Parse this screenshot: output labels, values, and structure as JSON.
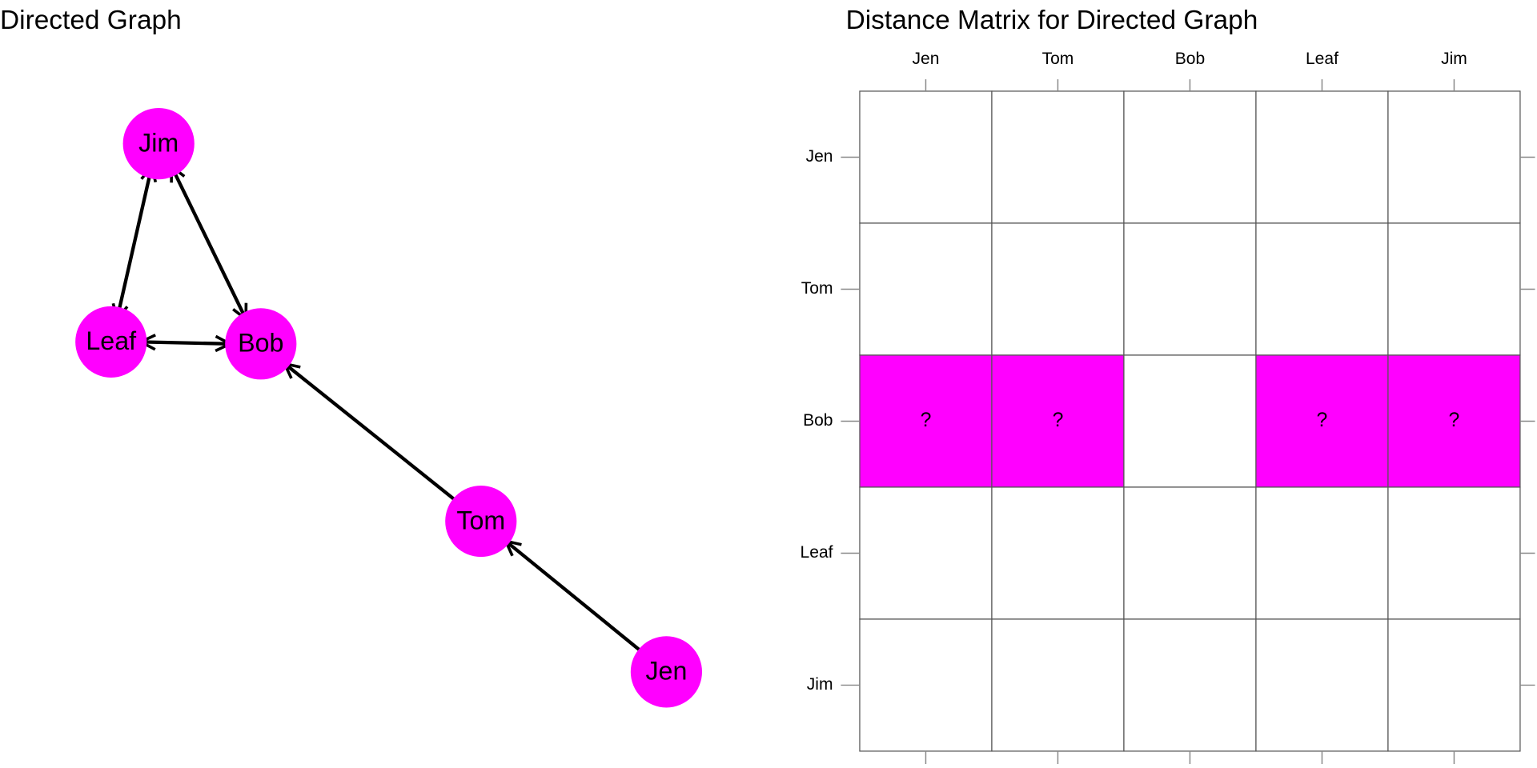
{
  "graph": {
    "title": "Directed Graph",
    "nodes": [
      "Jim",
      "Leaf",
      "Bob",
      "Tom",
      "Jen"
    ],
    "node_color": "#ff00ff"
  },
  "matrix": {
    "title": "Distance Matrix for Directed Graph",
    "columns": [
      "Jen",
      "Tom",
      "Bob",
      "Leaf",
      "Jim"
    ],
    "rows": [
      "Jen",
      "Tom",
      "Bob",
      "Leaf",
      "Jim"
    ],
    "cells": [
      [
        null,
        null,
        null,
        null,
        null
      ],
      [
        null,
        null,
        null,
        null,
        null
      ],
      [
        "?",
        "?",
        null,
        "?",
        "?"
      ],
      [
        null,
        null,
        null,
        null,
        null
      ],
      [
        null,
        null,
        null,
        null,
        null
      ]
    ],
    "highlight_color": "#ff00ff"
  }
}
